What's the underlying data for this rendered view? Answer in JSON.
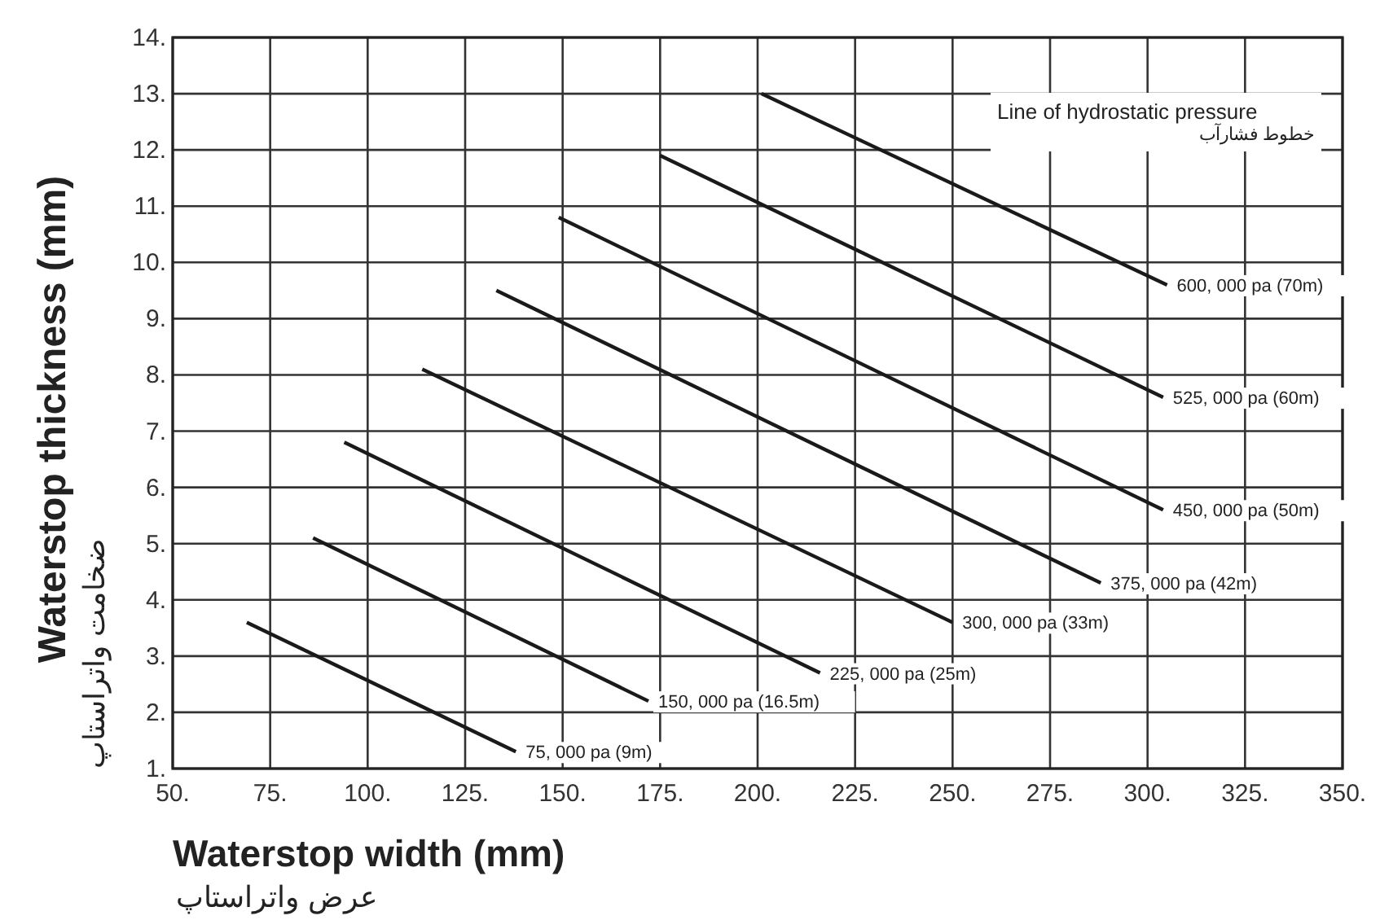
{
  "chart_data": {
    "type": "line",
    "xlabel": "Waterstop width (mm)\nعرض واتراستاپ",
    "ylabel": "Waterstop thickness (mm)\nضخامت واتراستاپ",
    "xlim": [
      50,
      350
    ],
    "ylim": [
      1,
      14
    ],
    "xticks": [
      {
        "value": 50,
        "label": "50."
      },
      {
        "value": 75,
        "label": "75."
      },
      {
        "value": 100,
        "label": "100."
      },
      {
        "value": 125,
        "label": "125."
      },
      {
        "value": 150,
        "label": "150."
      },
      {
        "value": 175,
        "label": "175."
      },
      {
        "value": 200,
        "label": "200."
      },
      {
        "value": 225,
        "label": "225."
      },
      {
        "value": 250,
        "label": "250."
      },
      {
        "value": 275,
        "label": "275."
      },
      {
        "value": 300,
        "label": "300."
      },
      {
        "value": 325,
        "label": "325."
      },
      {
        "value": 350,
        "label": "350."
      }
    ],
    "yticks": [
      {
        "value": 1,
        "label": "1."
      },
      {
        "value": 2,
        "label": "2."
      },
      {
        "value": 3,
        "label": "3."
      },
      {
        "value": 4,
        "label": "4."
      },
      {
        "value": 5,
        "label": "5."
      },
      {
        "value": 6,
        "label": "6."
      },
      {
        "value": 7,
        "label": "7."
      },
      {
        "value": 8,
        "label": "8."
      },
      {
        "value": 9,
        "label": "9."
      },
      {
        "value": 10,
        "label": "10."
      },
      {
        "value": 11,
        "label": "11."
      },
      {
        "value": 12,
        "label": "12."
      },
      {
        "value": 13,
        "label": "13."
      },
      {
        "value": 14,
        "label": "14."
      }
    ],
    "grid": true,
    "legend": false,
    "marker": "none",
    "line_style": "solid",
    "annotations": [
      "Line of hydrostatic pressure\nخطوط فشارآب"
    ],
    "series": [
      {
        "name": "75, 000 pa (9m)",
        "color": "#1a1a1a",
        "x": [
          69,
          138
        ],
        "values": [
          3.6,
          1.3
        ]
      },
      {
        "name": "150, 000 pa (16.5m)",
        "color": "#1a1a1a",
        "x": [
          86,
          172
        ],
        "values": [
          5.1,
          2.2
        ]
      },
      {
        "name": "225, 000 pa (25m)",
        "color": "#1a1a1a",
        "x": [
          94,
          216
        ],
        "values": [
          6.8,
          2.7
        ]
      },
      {
        "name": "300, 000 pa (33m)",
        "color": "#1a1a1a",
        "x": [
          114,
          250
        ],
        "values": [
          8.1,
          3.6
        ]
      },
      {
        "name": "375, 000 pa (42m)",
        "color": "#1a1a1a",
        "x": [
          133,
          288
        ],
        "values": [
          9.5,
          4.3
        ]
      },
      {
        "name": "450, 000 pa (50m)",
        "color": "#1a1a1a",
        "x": [
          149,
          304
        ],
        "values": [
          10.8,
          5.6
        ]
      },
      {
        "name": "525, 000 pa (60m)",
        "color": "#1a1a1a",
        "x": [
          175,
          304
        ],
        "values": [
          11.9,
          7.6
        ]
      },
      {
        "name": "600, 000 pa (70m)",
        "color": "#1a1a1a",
        "x": [
          201,
          305
        ],
        "values": [
          13.0,
          9.6
        ]
      }
    ]
  }
}
